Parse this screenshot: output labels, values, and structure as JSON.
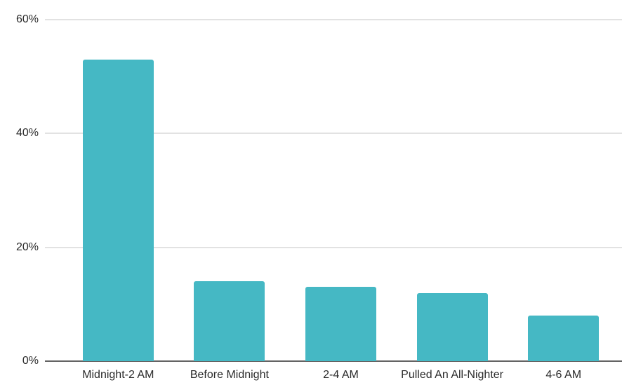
{
  "chart_data": {
    "type": "bar",
    "categories": [
      "Midnight-2 AM",
      "Before Midnight",
      "2-4 AM",
      "Pulled An All-Nighter",
      "4-6 AM"
    ],
    "values": [
      53,
      14,
      13,
      12,
      8
    ],
    "title": "",
    "xlabel": "",
    "ylabel": "",
    "ylim": [
      0,
      60
    ],
    "y_ticks": [
      0,
      20,
      40,
      60
    ],
    "y_tick_labels": [
      "0%",
      "20%",
      "40%",
      "60%"
    ],
    "grid": true,
    "legend": false,
    "bar_color": "#45b8c4",
    "gridline_color": "#e2e2e2",
    "axis_line_color": "#636363",
    "text_color": "#2b2b2b"
  }
}
